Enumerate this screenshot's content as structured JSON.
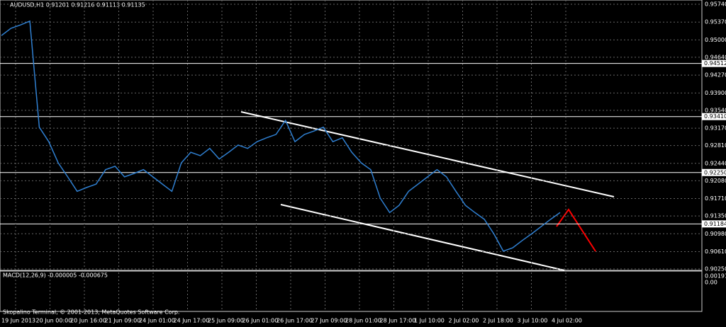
{
  "window": {
    "symbol_info": "AUDUSD,H1  0.91201 0.91216 0.91113 0.91135",
    "copyright": "Skopalino Terminal, © 2001-2013, MetaQuotes Software Corp.",
    "macd_info": "MACD(12,26,9) -0.000005 -0.000675",
    "price_ticks": [
      {
        "value": 0.9574,
        "label": "0.95740"
      },
      {
        "value": 0.9537,
        "label": "0.95370"
      },
      {
        "value": 0.95,
        "label": "0.95000"
      },
      {
        "value": 0.9464,
        "label": "0.94640"
      },
      {
        "value": 0.9427,
        "label": "0.94270"
      },
      {
        "value": 0.939,
        "label": "0.93900"
      },
      {
        "value": 0.9354,
        "label": "0.93540"
      },
      {
        "value": 0.9317,
        "label": "0.93170"
      },
      {
        "value": 0.9281,
        "label": "0.92810"
      },
      {
        "value": 0.9244,
        "label": "0.92440"
      },
      {
        "value": 0.9208,
        "label": "0.92080"
      },
      {
        "value": 0.9171,
        "label": "0.91710"
      },
      {
        "value": 0.9135,
        "label": "0.91350"
      },
      {
        "value": 0.9098,
        "label": "0.90980"
      },
      {
        "value": 0.9061,
        "label": "0.90610"
      },
      {
        "value": 0.9025,
        "label": "0.90250"
      }
    ],
    "price_lim": [
      0.9574,
      0.9025
    ],
    "level_lines": [
      {
        "value": 0.94512,
        "label": "0.94512"
      },
      {
        "value": 0.9341,
        "label": "0.93410"
      },
      {
        "value": 0.9225,
        "label": "0.92250"
      },
      {
        "value": 0.91184,
        "label": "0.91184"
      }
    ],
    "macd_ticks": [
      "0.001914",
      "0.00"
    ],
    "time_labels": [
      "19 Jun 2013",
      "20 Jun 00:00",
      "20 Jun 16:00",
      "21 Jun 09:00",
      "24 Jun 01:00",
      "24 Jun 17:00",
      "25 Jun 09:00",
      "26 Jun 01:00",
      "26 Jun 17:00",
      "27 Jun 09:00",
      "28 Jun 01:00",
      "28 Jun 17:00",
      "1 Jul 10:00",
      "2 Jul 02:00",
      "2 Jul 18:00",
      "3 Jul 10:00",
      "4 Jul 02:00"
    ],
    "close": [
      0.9509,
      0.9524,
      0.9531,
      0.9539,
      0.9319,
      0.9289,
      0.9245,
      0.9216,
      0.9186,
      0.9194,
      0.9201,
      0.9231,
      0.9238,
      0.9216,
      0.9223,
      0.9231,
      0.9216,
      0.9201,
      0.9186,
      0.9245,
      0.9267,
      0.926,
      0.9275,
      0.9253,
      0.9267,
      0.9282,
      0.9275,
      0.9289,
      0.9297,
      0.9304,
      0.9333,
      0.9289,
      0.9304,
      0.9311,
      0.9319,
      0.9289,
      0.9297,
      0.9267,
      0.9245,
      0.9231,
      0.9172,
      0.9142,
      0.9157,
      0.9186,
      0.9201,
      0.9216,
      0.9231,
      0.9216,
      0.9186,
      0.9157,
      0.9142,
      0.9128,
      0.9098,
      0.9062,
      0.9069,
      0.9084,
      0.9098,
      0.9113,
      0.9128,
      0.9142
    ]
  }
}
